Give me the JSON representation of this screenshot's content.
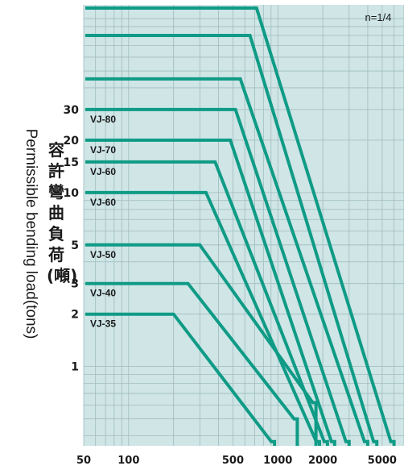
{
  "chart_data": {
    "type": "line",
    "annotation": "n=1/4",
    "ylabel": "Permissible bending load(tons)",
    "ylabel_zh": "容許彎曲負荷(噸)",
    "x_scale": "log",
    "y_scale": "log",
    "xlim": [
      50,
      7000
    ],
    "ylim": [
      0.35,
      120
    ],
    "x_ticks": [
      {
        "value": 50,
        "label": "50"
      },
      {
        "value": 100,
        "label": "100"
      },
      {
        "value": 500,
        "label": "500"
      },
      {
        "value": 1000,
        "label": "1000"
      },
      {
        "value": 2000,
        "label": "2000"
      },
      {
        "value": 5000,
        "label": "5000"
      }
    ],
    "y_ticks": [
      {
        "value": 1,
        "label": "1"
      },
      {
        "value": 2,
        "label": "2"
      },
      {
        "value": 3,
        "label": "3"
      },
      {
        "value": 5,
        "label": "5"
      },
      {
        "value": 10,
        "label": "10"
      },
      {
        "value": 15,
        "label": "15"
      },
      {
        "value": 20,
        "label": "20"
      },
      {
        "value": 30,
        "label": "30"
      }
    ],
    "grid": true,
    "series": [
      {
        "name": "VJ-35",
        "plateau": 2,
        "knee_x": 200,
        "end_x": 950,
        "end_y": 0.37
      },
      {
        "name": "VJ-40",
        "plateau": 3,
        "knee_x": 250,
        "end_x": 1350,
        "end_y": 0.5
      },
      {
        "name": "VJ-50",
        "plateau": 5,
        "knee_x": 300,
        "end_x": 1800,
        "end_y": 0.62
      },
      {
        "name": "VJ-60",
        "plateau": 10,
        "knee_x": 330,
        "end_x": 1900,
        "end_y": 0.37
      },
      {
        "name": "VJ-60",
        "plateau": 15,
        "knee_x": 380,
        "end_x": 2150,
        "end_y": 0.37
      },
      {
        "name": "VJ-70",
        "plateau": 20,
        "knee_x": 480,
        "end_x": 2400,
        "end_y": 0.37
      },
      {
        "name": "VJ-80",
        "plateau": 30,
        "knee_x": 520,
        "end_x": 3000,
        "end_y": 0.37
      },
      {
        "name": "",
        "plateau": 45,
        "knee_x": 560,
        "end_x": 4000,
        "end_y": 0.37
      },
      {
        "name": "",
        "plateau": 80,
        "knee_x": 650,
        "end_x": 4600,
        "end_y": 0.37
      },
      {
        "name": "",
        "plateau": 115,
        "knee_x": 720,
        "end_x": 6000,
        "end_y": 0.37
      }
    ],
    "colors": {
      "background": "#cfe5e6",
      "grid": "#9fbcbe",
      "line": "#0f9b86",
      "text": "#1a1a1a"
    }
  }
}
